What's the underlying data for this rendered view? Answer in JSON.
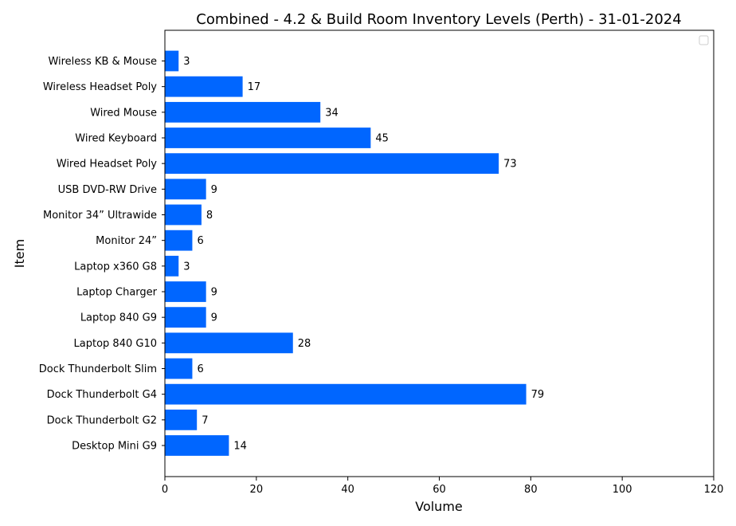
{
  "chart_data": {
    "type": "bar",
    "orientation": "horizontal",
    "title": "Combined - 4.2 & Build Room Inventory Levels (Perth) - 31-01-2024",
    "xlabel": "Volume",
    "ylabel": "Item",
    "xlim": [
      0,
      120
    ],
    "xticks": [
      0,
      20,
      40,
      60,
      80,
      100,
      120
    ],
    "grid": false,
    "legend": "top-right, empty",
    "bar_color": "#0066ff",
    "categories": [
      "Desktop Mini G9",
      "Dock Thunderbolt G2",
      "Dock Thunderbolt G4",
      "Dock Thunderbolt Slim",
      "Laptop 840 G10",
      "Laptop 840 G9",
      "Laptop Charger ",
      "Laptop x360 G8",
      "Monitor 24” ",
      "Monitor 34” Ultrawide",
      "USB DVD-RW Drive",
      "Wired Headset Poly",
      "Wired Keyboard",
      "Wired Mouse",
      "Wireless Headset Poly ",
      "Wireless KB & Mouse"
    ],
    "values": [
      14,
      7,
      79,
      6,
      28,
      9,
      9,
      3,
      6,
      8,
      9,
      73,
      45,
      34,
      17,
      3
    ]
  }
}
